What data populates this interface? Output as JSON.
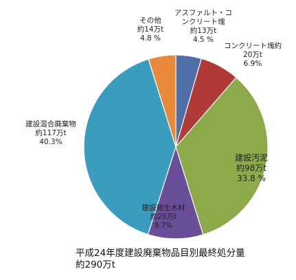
{
  "chart_data": {
    "type": "pie",
    "title_lines": [
      "平成24年度建設廃棄物品目別最終処分量",
      "約290万t"
    ],
    "slices": [
      {
        "name_lines": [
          "アスファルト・コ",
          "ンクリート塊"
        ],
        "amount": "約13万t",
        "percent_label": "4.5 %",
        "value": 4.5,
        "color": "#4F6FA8"
      },
      {
        "name_lines": [
          "コンクリート塊約"
        ],
        "amount": "20万t",
        "percent_label": "6.9%",
        "value": 6.9,
        "color": "#B03A36"
      },
      {
        "name_lines": [
          "建設汚泥"
        ],
        "amount": "約98万t",
        "percent_label": "33.8 %",
        "value": 33.8,
        "color": "#8CAA4A"
      },
      {
        "name_lines": [
          "建設発生木材"
        ],
        "amount": "約28万t",
        "percent_label": "9.7%",
        "value": 9.7,
        "color": "#6B4E9A"
      },
      {
        "name_lines": [
          "建設混合廃棄物"
        ],
        "amount": "約117万t",
        "percent_label": "40.3%",
        "value": 40.3,
        "color": "#3A9DBF"
      },
      {
        "name_lines": [
          "その他"
        ],
        "amount": "約14万t",
        "percent_label": "4.8 %",
        "value": 4.8,
        "color": "#E98A3B"
      }
    ]
  }
}
